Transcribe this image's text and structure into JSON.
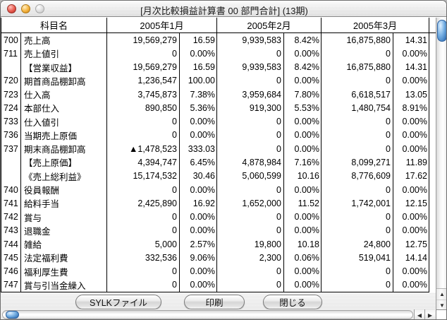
{
  "window": {
    "title": "[月次比較損益計算書 00 部門合計] (13期)"
  },
  "table": {
    "name_header": "科目名",
    "month_headers": [
      "2005年1月",
      "2005年2月",
      "2005年3月"
    ],
    "rows": [
      {
        "code": "700",
        "name": "売上高",
        "cells": [
          "19,569,279",
          "16.59",
          "9,939,583",
          "8.42%",
          "16,875,880",
          "14.31"
        ]
      },
      {
        "code": "711",
        "name": "売上値引",
        "cells": [
          "0",
          "0.00%",
          "0",
          "0.00%",
          "0",
          "0.00%"
        ]
      },
      {
        "code": "",
        "name": "【営業収益】",
        "cells": [
          "19,569,279",
          "16.59",
          "9,939,583",
          "8.42%",
          "16,875,880",
          "14.31"
        ]
      },
      {
        "code": "720",
        "name": "期首商品棚卸高",
        "cells": [
          "1,236,547",
          "100.00",
          "0",
          "0.00%",
          "0",
          "0.00%"
        ]
      },
      {
        "code": "723",
        "name": "仕入高",
        "cells": [
          "3,745,873",
          "7.38%",
          "3,959,684",
          "7.80%",
          "6,618,517",
          "13.05"
        ]
      },
      {
        "code": "724",
        "name": "本部仕入",
        "cells": [
          "890,850",
          "5.36%",
          "919,300",
          "5.53%",
          "1,480,754",
          "8.91%"
        ]
      },
      {
        "code": "733",
        "name": "仕入値引",
        "cells": [
          "0",
          "0.00%",
          "0",
          "0.00%",
          "0",
          "0.00%"
        ]
      },
      {
        "code": "736",
        "name": "当期売上原価",
        "cells": [
          "0",
          "0.00%",
          "0",
          "0.00%",
          "0",
          "0.00%"
        ]
      },
      {
        "code": "737",
        "name": "期末商品棚卸高",
        "cells": [
          "▲1,478,523",
          "333.03",
          "0",
          "0.00%",
          "0",
          "0.00%"
        ]
      },
      {
        "code": "",
        "name": "【売上原価】",
        "cells": [
          "4,394,747",
          "6.45%",
          "4,878,984",
          "7.16%",
          "8,099,271",
          "11.89"
        ]
      },
      {
        "code": "",
        "name": "《売上総利益》",
        "cells": [
          "15,174,532",
          "30.46",
          "5,060,599",
          "10.16",
          "8,776,609",
          "17.62"
        ]
      },
      {
        "code": "740",
        "name": "役員報酬",
        "cells": [
          "0",
          "0.00%",
          "0",
          "0.00%",
          "0",
          "0.00%"
        ]
      },
      {
        "code": "741",
        "name": "給料手当",
        "cells": [
          "2,425,890",
          "16.92",
          "1,652,000",
          "11.52",
          "1,742,001",
          "12.15"
        ]
      },
      {
        "code": "742",
        "name": "賞与",
        "cells": [
          "0",
          "0.00%",
          "0",
          "0.00%",
          "0",
          "0.00%"
        ]
      },
      {
        "code": "743",
        "name": "退職金",
        "cells": [
          "0",
          "0.00%",
          "0",
          "0.00%",
          "0",
          "0.00%"
        ]
      },
      {
        "code": "744",
        "name": "雑給",
        "cells": [
          "5,000",
          "2.57%",
          "19,800",
          "10.18",
          "24,800",
          "12.75"
        ]
      },
      {
        "code": "745",
        "name": "法定福利費",
        "cells": [
          "332,536",
          "9.06%",
          "2,300",
          "0.06%",
          "519,041",
          "14.14"
        ]
      },
      {
        "code": "746",
        "name": "福利厚生費",
        "cells": [
          "0",
          "0.00%",
          "0",
          "0.00%",
          "0",
          "0.00%"
        ]
      },
      {
        "code": "747",
        "name": "賞与引当金繰入",
        "cells": [
          "0",
          "0.00%",
          "0",
          "0.00%",
          "0",
          "0.00%"
        ]
      }
    ]
  },
  "buttons": {
    "sylk": "SYLKファイル",
    "print": "印刷",
    "close": "閉じる"
  },
  "scrollbars": {
    "up": "▲",
    "down": "▼",
    "left": "◀",
    "right": "▶"
  },
  "colors": {
    "accent_blue": "#3b7fc8",
    "close_red": "#e85a4e",
    "minimize_yellow": "#f4b33e",
    "inactive_gray": "#dedede",
    "grid_black": "#000000"
  }
}
